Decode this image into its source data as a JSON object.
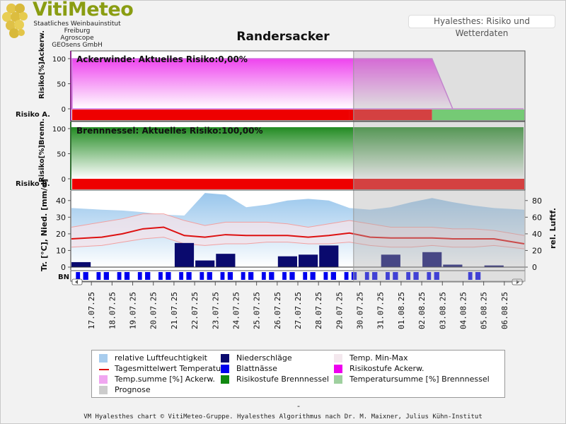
{
  "header": {
    "brand": "VitiMeteo",
    "org_lines": [
      "Staatliches Weinbauinstitut Freiburg",
      "Agroscope",
      "GEOsens GmbH"
    ],
    "module_title": "Hyalesthes: Risiko und Wetterdaten"
  },
  "chart_title": "Randersacker",
  "chart_data": [
    {
      "type": "area",
      "panel": "Ackerwinde",
      "title": "Ackerwinde: Aktuelles Risiko:0,00%",
      "ylabel": "Risiko[%]Ackerw.",
      "row_label": "Risiko A.",
      "ylim": [
        0,
        100
      ],
      "yticks": [
        0,
        50,
        100
      ],
      "x": [
        "16.07.25",
        "22.07.25",
        "29.07.25",
        "02.08.25",
        "03.08.25",
        "06.08.25"
      ],
      "values": [
        100,
        100,
        100,
        100,
        0,
        0
      ],
      "risk_bar": [
        {
          "from": "16.07.25",
          "to": "29.07.25",
          "level": "red"
        },
        {
          "from": "29.07.25",
          "to": "02.08.25",
          "level": "red"
        },
        {
          "from": "02.08.25",
          "to": "06.08.25",
          "level": "green"
        }
      ]
    },
    {
      "type": "area",
      "panel": "Brennnessel",
      "title": "Brennnessel: Aktuelles Risiko:100,00%",
      "ylabel": "Risiko[%]Brenn.",
      "row_label": "Risiko B.",
      "ylim": [
        0,
        100
      ],
      "yticks": [
        0,
        50,
        100
      ],
      "values_constant": 100,
      "risk_bar": [
        {
          "from": "16.07.25",
          "to": "06.08.25",
          "level": "red"
        }
      ]
    },
    {
      "type": "bar",
      "panel": "Wetterdaten",
      "ylabel_left": "Tr. [°C], Nied. [mm/d]",
      "ylabel_right": "rel. Luftf.",
      "bn_label": "BN",
      "left_ylim": [
        0,
        45
      ],
      "left_yticks": [
        0,
        10,
        20,
        30,
        40
      ],
      "right_ylim": [
        0,
        90
      ],
      "right_yticks": [
        0,
        20,
        40,
        60,
        80
      ],
      "categories": [
        "16.07.25",
        "17.07.25",
        "18.07.25",
        "19.07.25",
        "20.07.25",
        "21.07.25",
        "22.07.25",
        "23.07.25",
        "24.07.25",
        "25.07.25",
        "26.07.25",
        "27.07.25",
        "28.07.25",
        "29.07.25",
        "30.07.25",
        "31.07.25",
        "01.08.25",
        "02.08.25",
        "03.08.25",
        "04.08.25",
        "05.08.25",
        "06.08.25"
      ],
      "xtick_labels": [
        "17.07.25",
        "18.07.25",
        "19.07.25",
        "20.07.25",
        "21.07.25",
        "22.07.25",
        "23.07.25",
        "24.07.25",
        "25.07.25",
        "26.07.25",
        "27.07.25",
        "28.07.25",
        "29.07.25",
        "30.07.25",
        "31.07.25",
        "01.08.25",
        "02.08.25",
        "03.08.25",
        "04.08.25",
        "05.08.25",
        "06.08.25"
      ],
      "series": [
        {
          "name": "relative Luftfeuchtigkeit",
          "axis": "right",
          "values": [
            71,
            69,
            68,
            66,
            63,
            62,
            89,
            87,
            72,
            75,
            80,
            82,
            80,
            71,
            69,
            72,
            78,
            83,
            78,
            74,
            71,
            69
          ]
        },
        {
          "name": "Niederschläge",
          "axis": "left",
          "values": [
            3,
            0,
            0,
            0,
            0,
            14.5,
            4,
            8,
            0,
            0,
            6.5,
            7.5,
            13,
            0,
            0,
            7.5,
            0,
            9,
            1.5,
            0,
            1,
            0
          ]
        },
        {
          "name": "Tagesmittelwert Temperatur",
          "axis": "left",
          "values": [
            17,
            18,
            20,
            23,
            24,
            19,
            18,
            19.5,
            19,
            19,
            19,
            18,
            19,
            20.5,
            18,
            17.5,
            17.5,
            17.5,
            17,
            17,
            17,
            14
          ]
        },
        {
          "name": "Temp. Min-Max",
          "axis": "left",
          "min": [
            12,
            13,
            15,
            17,
            18,
            14,
            13,
            14,
            14,
            15,
            15,
            14,
            14,
            15,
            13,
            12,
            12,
            13,
            12,
            12,
            13,
            11
          ],
          "max": [
            24,
            27,
            29,
            32,
            32,
            28,
            25,
            27,
            27,
            27,
            26,
            24,
            26,
            28,
            26,
            24,
            24,
            24,
            23,
            23,
            22,
            19
          ]
        }
      ],
      "blattnaesse_days_index": [
        0,
        1,
        2,
        3,
        4,
        5,
        6,
        7,
        8,
        9,
        10,
        11,
        12,
        13,
        14,
        15,
        16,
        17,
        19
      ],
      "prognose_from": "29.07.25"
    }
  ],
  "legend": [
    {
      "label": "relative Luftfeuchtigkeit",
      "color": "#a8cdee"
    },
    {
      "label": "Niederschläge",
      "color": "#0a0a6e"
    },
    {
      "label": "Temp. Min-Max",
      "color": "#f4e8ee"
    },
    {
      "label": "Tagesmittelwert Temperatur",
      "color": "#dd1111"
    },
    {
      "label": "Blattnässe",
      "color": "#0000ee"
    },
    {
      "label": "Risikostufe Ackerw.",
      "color": "#ee00ee"
    },
    {
      "label": "Temp.summe [%] Ackerw.",
      "color": "#f0a6f0"
    },
    {
      "label": "Risikostufe Brennnessel",
      "color": "#118811"
    },
    {
      "label": "Temperatursumme [%] Brennnessel",
      "color": "#9fd09f"
    },
    {
      "label": "Prognose",
      "color": "#cccccc"
    }
  ],
  "footer_dash": "-",
  "footer": "VM Hyalesthes chart © VitiMeteo-Gruppe. Hyalesthes Algorithmus nach Dr. M. Maixner, Julius Kühn-Institut"
}
